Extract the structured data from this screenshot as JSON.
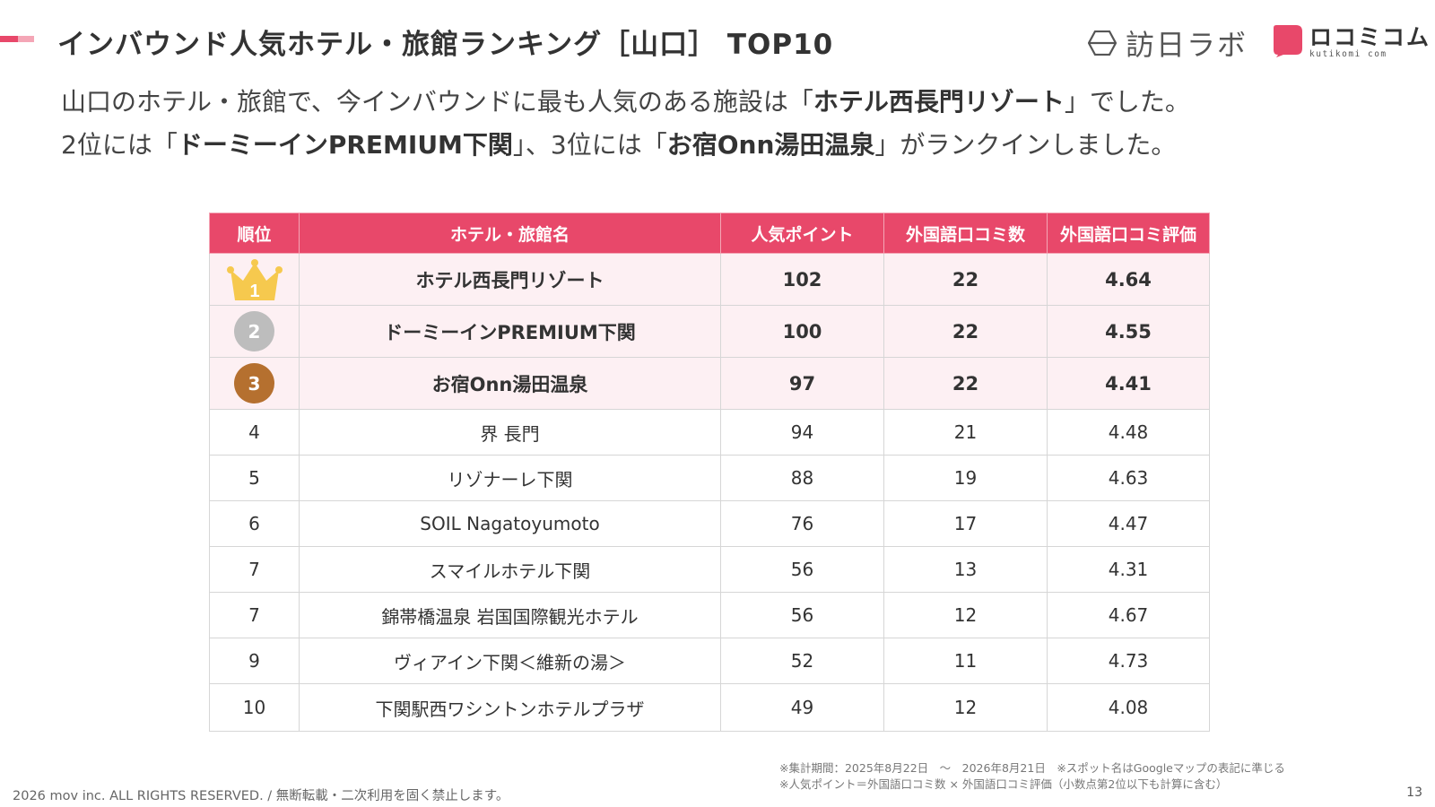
{
  "header": {
    "title": "インバウンド人気ホテル・旅館ランキング［山口］ TOP10",
    "accent_color": "#e8486a",
    "accent_light_color": "#f4a6b6"
  },
  "logos": {
    "hounichi": {
      "icon": "hexagon-logo-icon",
      "text": "訪日ラボ"
    },
    "kuchikomi": {
      "icon": "speech-bubble-logo-icon",
      "text": "ロコミコム",
      "sub": "kutikomi com"
    }
  },
  "lead": {
    "line1_pre": "山口のホテル・旅館で、今インバウンドに最も人気のある施設は「",
    "line1_bold": "ホテル西長門リゾート",
    "line1_post": "」でした。",
    "line2_pre": "2位には「",
    "line2_bold1": "ドーミーインPREMIUM下関",
    "line2_mid": "」、3位には「",
    "line2_bold2": "お宿Onn湯田温泉",
    "line2_post": "」がランクインしました。"
  },
  "table": {
    "headers": [
      "順位",
      "ホテル・旅館名",
      "人気ポイント",
      "外国語口コミ数",
      "外国語口コミ評価"
    ],
    "header_bg": "#e8486a",
    "highlight_bg": "#fdf0f3",
    "medal_colors": {
      "gold": "#f6c94e",
      "silver": "#bdbdbd",
      "bronze": "#b5702f"
    },
    "rows": [
      {
        "rank": "1",
        "name": "ホテル西長門リゾート",
        "points": "102",
        "reviews": "22",
        "rating": "4.64"
      },
      {
        "rank": "2",
        "name": "ドーミーインPREMIUM下関",
        "points": "100",
        "reviews": "22",
        "rating": "4.55"
      },
      {
        "rank": "3",
        "name": "お宿Onn湯田温泉",
        "points": "97",
        "reviews": "22",
        "rating": "4.41"
      },
      {
        "rank": "4",
        "name": "界 長門",
        "points": "94",
        "reviews": "21",
        "rating": "4.48"
      },
      {
        "rank": "5",
        "name": "リゾナーレ下関",
        "points": "88",
        "reviews": "19",
        "rating": "4.63"
      },
      {
        "rank": "6",
        "name": "SOIL Nagatoyumoto",
        "points": "76",
        "reviews": "17",
        "rating": "4.47"
      },
      {
        "rank": "7",
        "name": "スマイルホテル下関",
        "points": "56",
        "reviews": "13",
        "rating": "4.31"
      },
      {
        "rank": "7",
        "name": "錦帯橋温泉 岩国国際観光ホテル",
        "points": "56",
        "reviews": "12",
        "rating": "4.67"
      },
      {
        "rank": "9",
        "name": "ヴィアイン下関＜維新の湯＞",
        "points": "52",
        "reviews": "11",
        "rating": "4.73"
      },
      {
        "rank": "10",
        "name": "下関駅西ワシントンホテルプラザ",
        "points": "49",
        "reviews": "12",
        "rating": "4.08"
      }
    ]
  },
  "notes": {
    "line1": "※集計期間：2025年8月22日　〜　2026年8月21日　※スポット名はGoogleマップの表記に準じる",
    "line2": "※人気ポイント＝外国語口コミ数 × 外国語口コミ評価（小数点第2位以下も計算に含む）"
  },
  "footer": {
    "copyright": "2026 mov inc. ALL RIGHTS RESERVED. / 無断転載・二次利用を固く禁止します。",
    "page_number": "13"
  }
}
